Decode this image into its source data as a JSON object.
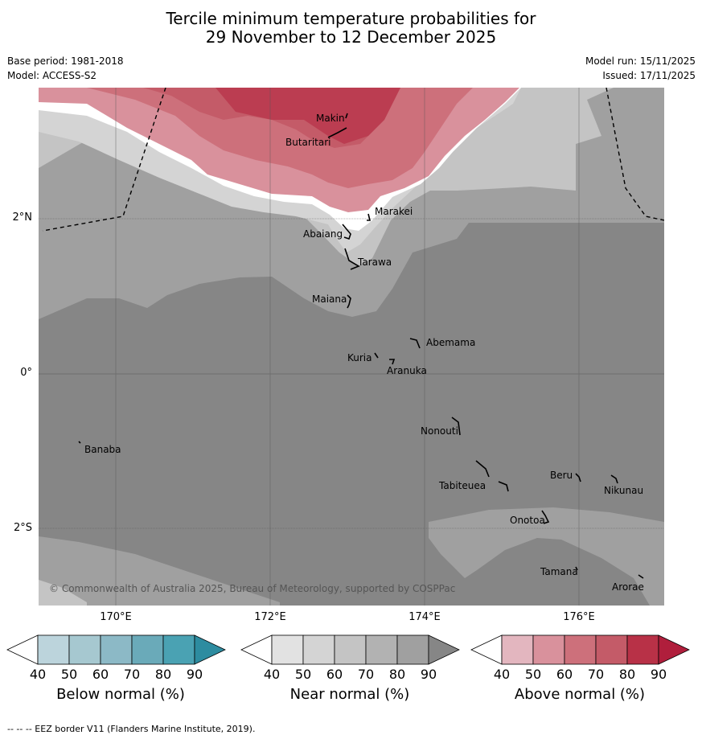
{
  "title": {
    "line1": "Tercile minimum temperature probabilities for",
    "line2": "29 November to 12 December 2025"
  },
  "meta": {
    "base_period": "Base period: 1981-2018",
    "model": "Model: ACCESS-S2",
    "model_run": "Model run: 15/11/2025",
    "issued": "Issued: 17/11/2025"
  },
  "map": {
    "lat_labels": [
      "2°N",
      "0°",
      "2°S"
    ],
    "lon_labels": [
      "170°E",
      "172°E",
      "174°E",
      "176°E"
    ],
    "places": [
      "Makin",
      "Butaritari",
      "Marakei",
      "Abaiang",
      "Tarawa",
      "Maiana",
      "Abemama",
      "Kuria",
      "Aranuka",
      "Nonouti",
      "Banaba",
      "Beru",
      "Tabiteuea",
      "Nikunau",
      "Onotoa",
      "Tamana",
      "Arorae"
    ],
    "copyright": "© Commonwealth of Australia 2025, Bureau of Meteorology, supported by COSPPac"
  },
  "colorbars": [
    {
      "label": "Below normal (%)",
      "ticks": [
        "40",
        "50",
        "60",
        "70",
        "80",
        "90"
      ],
      "colors": [
        "#ffffff",
        "#bcd4dc",
        "#a6c8d0",
        "#8cb9c6",
        "#6aaab9",
        "#4aa2b3",
        "#2d8ca0"
      ]
    },
    {
      "label": "Near normal (%)",
      "ticks": [
        "40",
        "50",
        "60",
        "70",
        "80",
        "90"
      ],
      "colors": [
        "#ffffff",
        "#e2e2e2",
        "#d4d4d4",
        "#c4c4c4",
        "#b2b2b2",
        "#a0a0a0",
        "#868686"
      ]
    },
    {
      "label": "Above normal (%)",
      "ticks": [
        "40",
        "50",
        "60",
        "70",
        "80",
        "90"
      ],
      "colors": [
        "#ffffff",
        "#e3b6bf",
        "#d9919c",
        "#cd707b",
        "#c45b68",
        "#b83147",
        "#b01e3c"
      ]
    }
  ],
  "footer": "-- -- -- EEZ border V11 (Flanders Marine Institute, 2019)."
}
